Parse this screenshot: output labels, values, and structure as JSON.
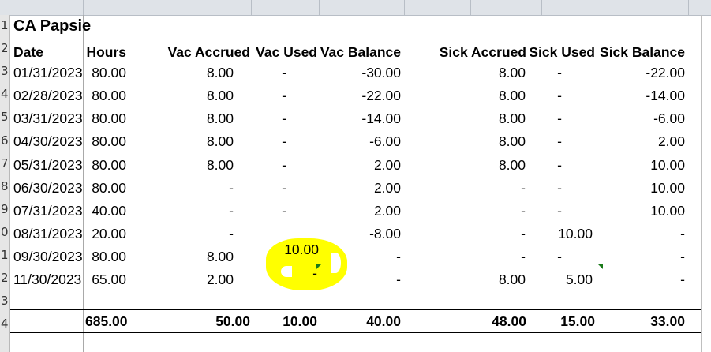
{
  "sheet": {
    "title": "CA Papsie",
    "row_numbers": [
      "1",
      "2",
      "3",
      "4",
      "5",
      "6",
      "7",
      "8",
      "9",
      "0",
      "1",
      "2",
      "3",
      "4"
    ],
    "headers": [
      "Date",
      "Hours",
      "Vac Accrued",
      "Vac Used",
      "Vac Balance",
      "Sick Accrued",
      "Sick Used",
      "Sick Balance"
    ],
    "rows": [
      [
        "01/31/2023",
        "80.00",
        "8.00",
        "-",
        "-30.00",
        "8.00",
        "-",
        "-22.00"
      ],
      [
        "02/28/2023",
        "80.00",
        "8.00",
        "-",
        "-22.00",
        "8.00",
        "-",
        "-14.00"
      ],
      [
        "03/31/2023",
        "80.00",
        "8.00",
        "-",
        "-14.00",
        "8.00",
        "-",
        "-6.00"
      ],
      [
        "04/30/2023",
        "80.00",
        "8.00",
        "-",
        "-6.00",
        "8.00",
        "-",
        "2.00"
      ],
      [
        "05/31/2023",
        "80.00",
        "8.00",
        "-",
        "2.00",
        "8.00",
        "-",
        "10.00"
      ],
      [
        "06/30/2023",
        "80.00",
        "-",
        "-",
        "2.00",
        "-",
        "-",
        "10.00"
      ],
      [
        "07/31/2023",
        "40.00",
        "-",
        "-",
        "2.00",
        "-",
        "-",
        "10.00"
      ],
      [
        "08/31/2023",
        "20.00",
        "-",
        "10.00",
        "-8.00",
        "-",
        "10.00",
        "-"
      ],
      [
        "09/30/2023",
        "80.00",
        "8.00",
        "-",
        "-",
        "-",
        "-",
        "-"
      ],
      [
        "11/30/2023",
        "65.00",
        "2.00",
        "-",
        "-",
        "8.00",
        "5.00",
        "-"
      ]
    ],
    "totals": [
      "",
      "685.00",
      "50.00",
      "10.00",
      "40.00",
      "48.00",
      "15.00",
      "33.00"
    ]
  },
  "colors": {
    "highlight": "#ffff00",
    "error_triangle": "#1a7a1a",
    "gridline": "#a9a9a9",
    "gutter": "#e6e6e6"
  }
}
